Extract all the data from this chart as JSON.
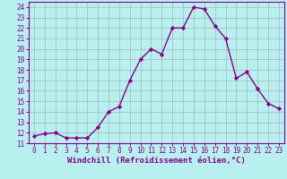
{
  "x": [
    0,
    1,
    2,
    3,
    4,
    5,
    6,
    7,
    8,
    9,
    10,
    11,
    12,
    13,
    14,
    15,
    16,
    17,
    18,
    19,
    20,
    21,
    22,
    23
  ],
  "y": [
    11.7,
    11.9,
    12.0,
    11.5,
    11.5,
    11.5,
    12.5,
    14.0,
    14.5,
    17.0,
    19.0,
    20.0,
    19.5,
    22.0,
    22.0,
    24.0,
    23.8,
    22.2,
    21.0,
    17.2,
    17.8,
    16.2,
    14.8,
    14.3
  ],
  "line_color": "#880088",
  "marker": "D",
  "marker_size": 2.2,
  "bg_color": "#b8f0f0",
  "grid_color": "#999999",
  "xlabel": "Windchill (Refroidissement éolien,°C)",
  "ylim": [
    11,
    24.5
  ],
  "xlim": [
    -0.5,
    23.5
  ],
  "yticks": [
    11,
    12,
    13,
    14,
    15,
    16,
    17,
    18,
    19,
    20,
    21,
    22,
    23,
    24
  ],
  "xticks": [
    0,
    1,
    2,
    3,
    4,
    5,
    6,
    7,
    8,
    9,
    10,
    11,
    12,
    13,
    14,
    15,
    16,
    17,
    18,
    19,
    20,
    21,
    22,
    23
  ],
  "tick_fontsize": 5.5,
  "xlabel_fontsize": 6.5,
  "line_width": 1.0,
  "spine_color": "#880088",
  "tick_color": "#880088",
  "label_color": "#880088"
}
